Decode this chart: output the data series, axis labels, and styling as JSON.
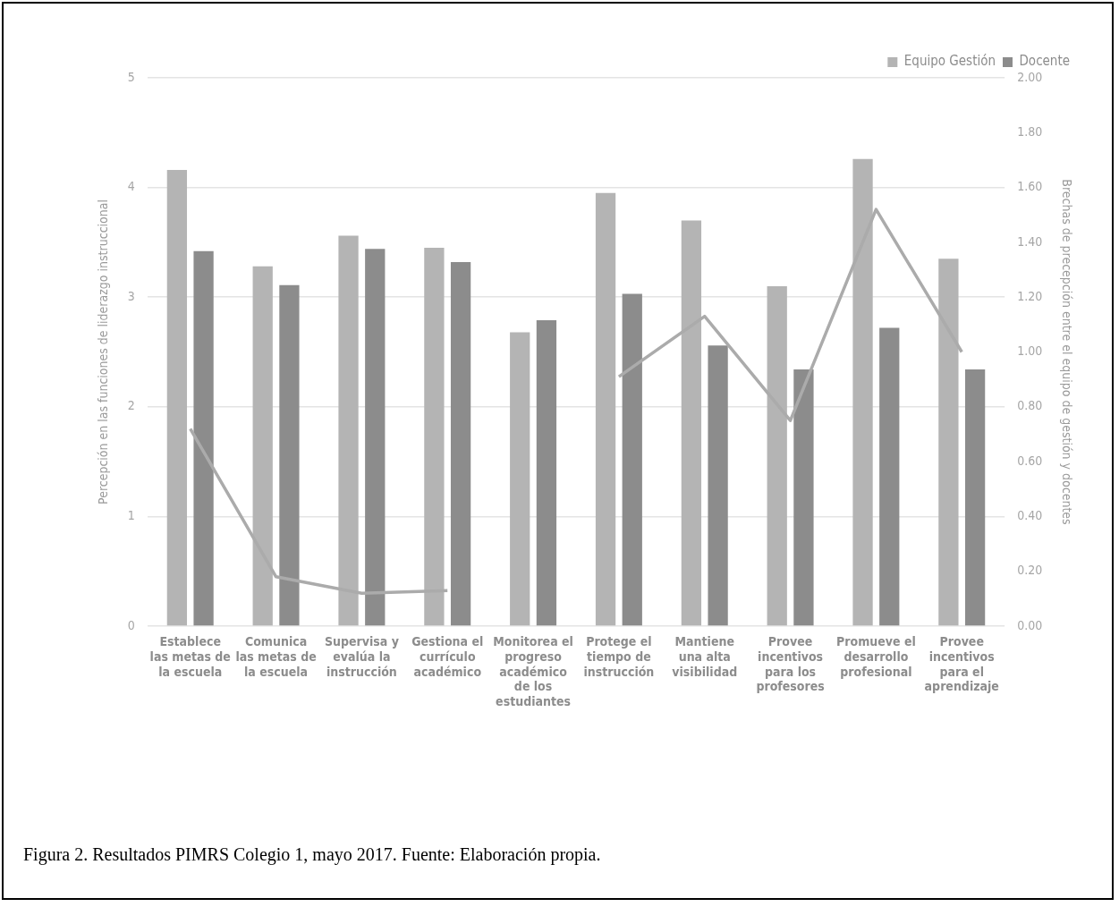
{
  "chart_data": {
    "type": "bar",
    "categories": [
      "Establece las metas de la escuela",
      "Comunica las metas de la escuela",
      "Supervisa y evalúa la instrucción",
      "Gestiona el currículo académico",
      "Monitorea el progreso académico de los estudiantes",
      "Protege el tiempo de instrucción",
      "Mantiene una alta visibilidad",
      "Provee incentivos para los profesores",
      "Promueve el desarrollo profesional",
      "Provee incentivos para el aprendizaje"
    ],
    "series": [
      {
        "name": "Equipo Gestión",
        "color": "#b4b4b4",
        "values": [
          4.16,
          3.28,
          3.56,
          3.45,
          2.68,
          3.95,
          3.7,
          3.1,
          4.26,
          3.35
        ]
      },
      {
        "name": "Docente",
        "color": "#8c8c8c",
        "values": [
          3.42,
          3.11,
          3.44,
          3.32,
          2.79,
          3.03,
          2.56,
          2.34,
          2.72,
          2.34
        ]
      },
      {
        "type": "line",
        "axis": "y2",
        "color": "#ababab",
        "values": [
          0.72,
          0.18,
          0.12,
          0.13,
          null,
          0.91,
          1.13,
          0.75,
          1.52,
          1.0
        ]
      }
    ],
    "ylabel": "Percepción en las funciones de liderazgo instruccional",
    "y2label": "Brechas de precepción entre el equipo de gestión y docentes",
    "ylim": [
      0,
      5
    ],
    "yticks": [
      0,
      1,
      2,
      3,
      4,
      5
    ],
    "y2lim": [
      0,
      2
    ],
    "y2ticks": [
      {
        "value": 0,
        "label": "0.00"
      },
      {
        "value": 0.2,
        "label": "0.20"
      },
      {
        "value": 0.4,
        "label": "0.40"
      },
      {
        "value": 0.6,
        "label": "0.60"
      },
      {
        "value": 0.8,
        "label": "0.80"
      },
      {
        "value": 1,
        "label": "1.00"
      },
      {
        "value": 1.2,
        "label": "1.20"
      },
      {
        "value": 1.4,
        "label": "1.40"
      },
      {
        "value": 1.6,
        "label": "1.60"
      },
      {
        "value": 1.8,
        "label": "1.80"
      },
      {
        "value": 2,
        "label": "2.00"
      }
    ],
    "grid": "y",
    "legend": "top right",
    "marker": "none",
    "line_style": "solid",
    "annotations": [
      "Figura 2. Resultados PIMRS Colegio 1, mayo 2017. Fuente: Elaboración propia."
    ]
  }
}
